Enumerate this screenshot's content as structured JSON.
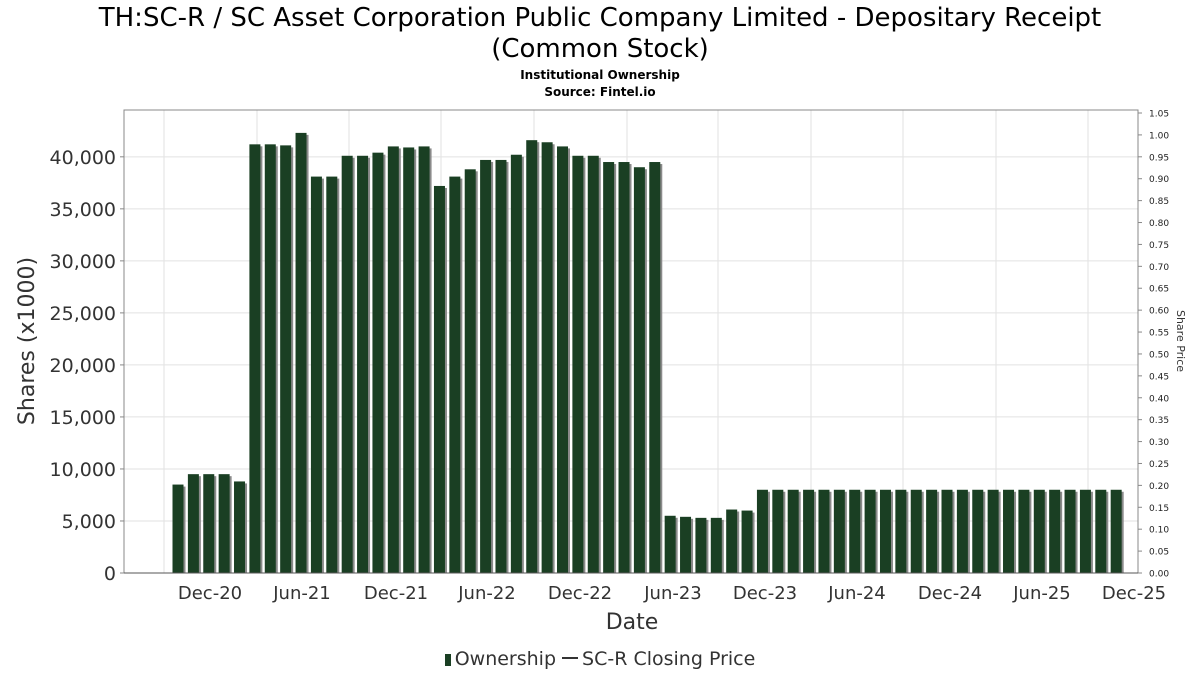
{
  "title_line1": "TH:SC-R / SC Asset Corporation Public Company Limited - Depositary Receipt",
  "title_line2": "(Common Stock)",
  "subtitle": "Institutional Ownership",
  "source": "Source: Fintel.io",
  "legend": {
    "ownership": "Ownership",
    "price": "SC-R Closing Price"
  },
  "colors": {
    "bar": "#1a3f23",
    "bar_shadow": "#8a8a8a",
    "grid": "#e2e2e2",
    "axis": "#888888"
  },
  "chart_data": {
    "type": "bar",
    "title": "TH:SC-R / SC Asset Corporation Public Company Limited - Depositary Receipt (Common Stock)",
    "subtitle": "Institutional Ownership",
    "xlabel": "Date",
    "ylabel": "Shares (x1000)",
    "y2label": "Share Price",
    "ylim": [
      0,
      44500
    ],
    "y2lim": [
      0.0,
      1.05
    ],
    "yticks": [
      0,
      5000,
      10000,
      15000,
      20000,
      25000,
      30000,
      35000,
      40000
    ],
    "ytick_labels": [
      "0",
      "5,000",
      "10,000",
      "15,000",
      "20,000",
      "25,000",
      "30,000",
      "35,000",
      "40,000"
    ],
    "y2tick_labels": [
      "0.00",
      "0.05",
      "0.10",
      "0.15",
      "0.20",
      "0.25",
      "0.30",
      "0.35",
      "0.40",
      "0.45",
      "0.50",
      "0.55",
      "0.60",
      "0.65",
      "0.70",
      "0.75",
      "0.80",
      "0.85",
      "0.90",
      "0.95",
      "1.00",
      "1.05"
    ],
    "xtick_labels": [
      "Dec-20",
      "Jun-21",
      "Dec-21",
      "Jun-22",
      "Dec-22",
      "Jun-23",
      "Dec-23",
      "Jun-24",
      "Dec-24",
      "Jun-25",
      "Dec-25"
    ],
    "grid": true,
    "legend_position": "bottom",
    "series": [
      {
        "name": "Ownership",
        "values": [
          8500,
          9500,
          9500,
          9500,
          8800,
          41200,
          41200,
          41100,
          42300,
          38100,
          38100,
          40100,
          40100,
          40400,
          41000,
          40900,
          41000,
          37200,
          38100,
          38800,
          39700,
          39700,
          40200,
          41600,
          41400,
          41000,
          40100,
          40100,
          39500,
          39500,
          39000,
          39500,
          5500,
          5400,
          5300,
          5300,
          6100,
          6000,
          8000,
          8000,
          8000,
          8000,
          8000,
          8000,
          8000,
          8000,
          8000,
          8000,
          8000,
          8000,
          8000,
          8000,
          8000,
          8000,
          8000,
          8000,
          8000,
          8000,
          8000,
          8000,
          8000,
          8000
        ]
      },
      {
        "name": "SC-R Closing Price",
        "values": []
      }
    ]
  }
}
